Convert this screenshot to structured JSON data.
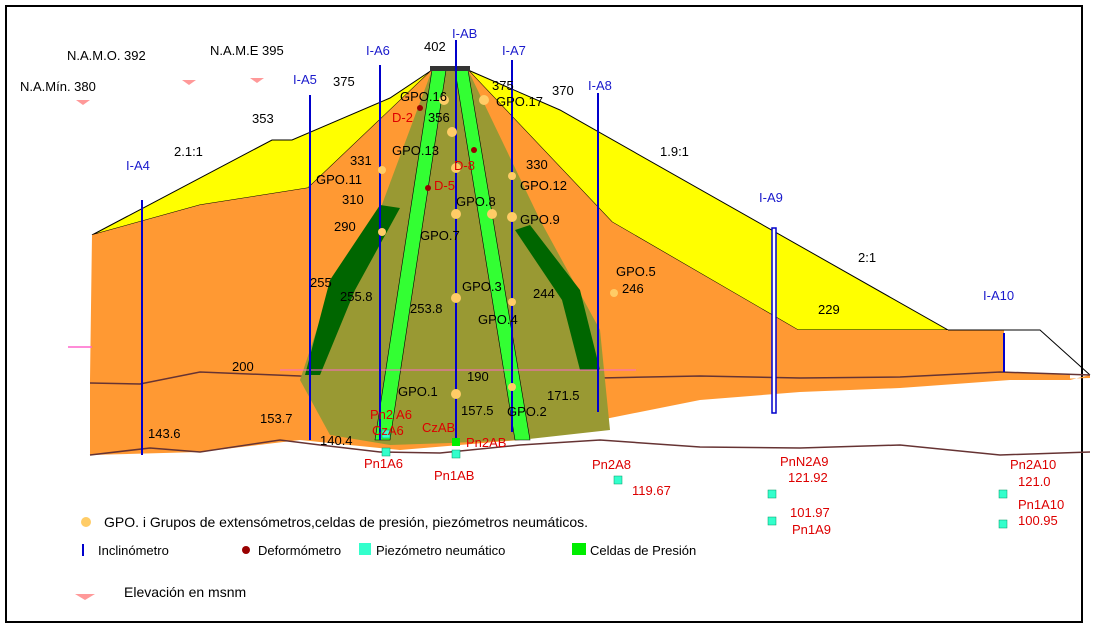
{
  "slopes": {
    "upstream": "2.1:1",
    "downstream_upper": "1.9:1",
    "downstream_lower": "2:1"
  },
  "reservoir_levels": {
    "namo": "N.A.M.O. 392",
    "name": "N.A.M.E  395",
    "namin": "N.A.Mín.  380"
  },
  "elevations": {
    "crest": "402",
    "e375a": "375",
    "e375b": "375",
    "e370": "370",
    "e356": "356",
    "e353": "353",
    "e331": "331",
    "e330": "330",
    "e310": "310",
    "e290": "290",
    "e255": "255",
    "e255_8": "255.8",
    "e253_8": "253.8",
    "e246": "246",
    "e244": "244",
    "e229": "229",
    "e200": "200",
    "e190": "190",
    "e171_5": "171.5",
    "e157_5": "157.5",
    "e153_7": "153.7",
    "e143_6": "143.6",
    "e140_4": "140.4"
  },
  "inclinometers": {
    "a4": "I-A4",
    "a5": "I-A5",
    "a6": "I-A6",
    "ab": "I-AB",
    "a7": "I-A7",
    "a8": "I-A8",
    "a9": "I-A9",
    "a10": "I-A10"
  },
  "gpo_groups": {
    "g16": "GPO.16",
    "g17": "GPO.17",
    "g13": "GPO.13",
    "g11": "GPO.11",
    "g12": "GPO.12",
    "g8": "GPO.8",
    "g9": "GPO.9",
    "g7": "GPO.7",
    "g5": "GPO.5",
    "g3": "GPO.3",
    "g4": "GPO.4",
    "g1": "GPO.1",
    "g2": "GPO.2"
  },
  "deformometers": {
    "d2": "D-2",
    "d8": "D-8",
    "d5": "D-5"
  },
  "piezometers": {
    "pn2a6": "Pn2 A6",
    "czA6": "CzA6",
    "czAB": "CzAB",
    "pn2ab": "Pn2AB",
    "pn1a6": "Pn1A6",
    "pn1ab": "Pn1AB",
    "pn2a8": "Pn2A8",
    "v119_67": "119.67",
    "pnn2a9": "PnN2A9",
    "v121_92": "121.92",
    "v101_97": "101.97",
    "pn1a9": "Pn1A9",
    "pn2a10": "Pn2A10",
    "v121_0": "121.0",
    "pn1a10": "Pn1A10",
    "v100_95": "100.95"
  },
  "legend": {
    "gpo": "GPO. i   Grupos de extensómetros,celdas de presión, piezómetros neumáticos.",
    "inclinometer": "Inclinómetro",
    "deformometer": "Deformómetro",
    "piezometer": "Piezómetro neumático",
    "pressure_cell": "Celdas de Presión",
    "elevation": "Elevación en msnm"
  },
  "colors": {
    "yellow_shell": "#ffff00",
    "orange_fill": "#ff9933",
    "core_olive": "#999933",
    "filter_green": "#006600",
    "core_bright": "#33ff33",
    "piezo": "#33ffcc",
    "inclinometer": "#0000cc",
    "deformometer": "#990000",
    "gpo": "#ffcc66"
  }
}
